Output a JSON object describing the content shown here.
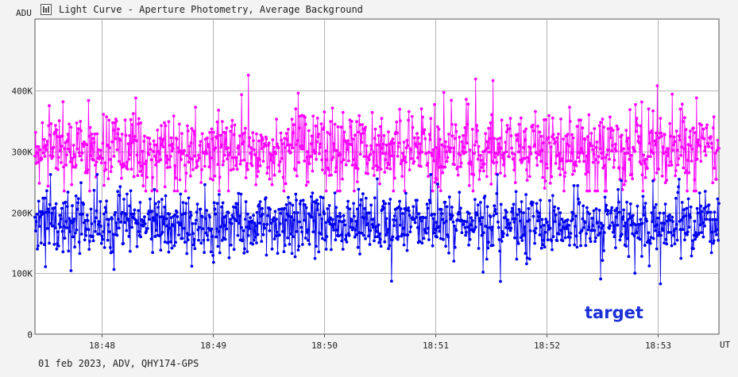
{
  "header": {
    "title": "Light Curve - Aperture Photometry, Average Background"
  },
  "footer": {
    "text": "01 feb 2023, ADV, QHY174-GPS"
  },
  "icons": {
    "app_icon": "chart-window-icon"
  },
  "colors": {
    "background": "#f3f3f3",
    "plot_background": "#ffffff",
    "grid": "#b4b4b4",
    "comparison_series": "#ff00ff",
    "target_series": "#0000ee"
  },
  "chart_data": {
    "type": "scatter",
    "title": "Light Curve - Aperture Photometry, Average Background",
    "xlabel": "UT",
    "ylabel": "ADU",
    "xlim": [
      "18:47:24",
      "18:53:33"
    ],
    "ylim": [
      0,
      400000
    ],
    "grid": true,
    "x_ticks": [
      "18:48",
      "18:49",
      "18:50",
      "18:51",
      "18:52",
      "18:53"
    ],
    "y_ticks": [
      {
        "value": 0,
        "label": "0"
      },
      {
        "value": 100000,
        "label": "100K"
      },
      {
        "value": 200000,
        "label": "200K"
      },
      {
        "value": 300000,
        "label": "300K"
      },
      {
        "value": 400000,
        "label": "400K"
      }
    ],
    "annotations": [
      {
        "text": "target",
        "series": "target"
      }
    ],
    "series": [
      {
        "id": "comparison",
        "color": "#ff00ff",
        "mean": 305000,
        "spread": 40000,
        "min": 235000,
        "max": 425000,
        "points": 1100
      },
      {
        "id": "target",
        "color": "#0000ee",
        "mean": 182000,
        "spread": 32000,
        "min": 62000,
        "max": 262000,
        "points": 1100
      }
    ]
  }
}
